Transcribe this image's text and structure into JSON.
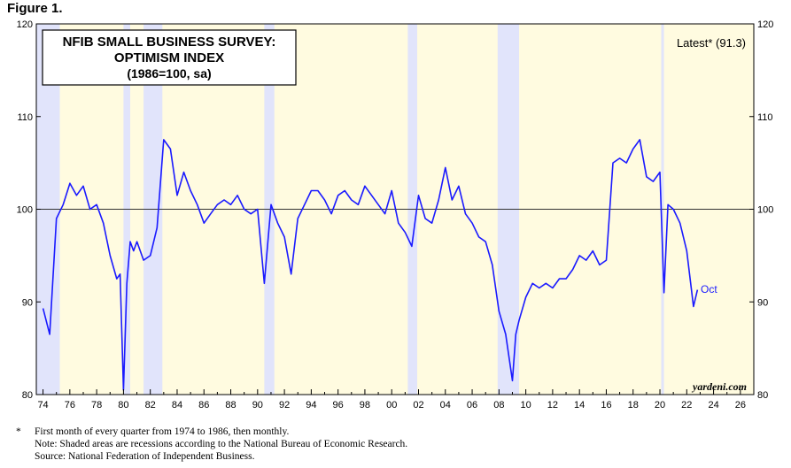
{
  "figure_label": "Figure 1.",
  "chart_data": {
    "type": "line",
    "title_lines": [
      "NFIB SMALL BUSINESS SURVEY:",
      "OPTIMISM INDEX",
      "(1986=100, sa)"
    ],
    "latest_label": "Latest* (91.3)",
    "end_label": "Oct",
    "watermark": "yardeni.com",
    "xlim": [
      1973.5,
      2027
    ],
    "ylim": [
      80,
      120
    ],
    "y_ticks": [
      80,
      90,
      100,
      110,
      120
    ],
    "x_ticks": [
      {
        "year": 1974,
        "label": "74"
      },
      {
        "year": 1976,
        "label": "76"
      },
      {
        "year": 1978,
        "label": "78"
      },
      {
        "year": 1980,
        "label": "80"
      },
      {
        "year": 1982,
        "label": "82"
      },
      {
        "year": 1984,
        "label": "84"
      },
      {
        "year": 1986,
        "label": "86"
      },
      {
        "year": 1988,
        "label": "88"
      },
      {
        "year": 1990,
        "label": "90"
      },
      {
        "year": 1992,
        "label": "92"
      },
      {
        "year": 1994,
        "label": "94"
      },
      {
        "year": 1996,
        "label": "96"
      },
      {
        "year": 1998,
        "label": "98"
      },
      {
        "year": 2000,
        "label": "00"
      },
      {
        "year": 2002,
        "label": "02"
      },
      {
        "year": 2004,
        "label": "04"
      },
      {
        "year": 2006,
        "label": "06"
      },
      {
        "year": 2008,
        "label": "08"
      },
      {
        "year": 2010,
        "label": "10"
      },
      {
        "year": 2012,
        "label": "12"
      },
      {
        "year": 2014,
        "label": "14"
      },
      {
        "year": 2016,
        "label": "16"
      },
      {
        "year": 2018,
        "label": "18"
      },
      {
        "year": 2020,
        "label": "20"
      },
      {
        "year": 2022,
        "label": "22"
      },
      {
        "year": 2024,
        "label": "24"
      },
      {
        "year": 2026,
        "label": "26"
      }
    ],
    "recessions": [
      [
        1973.5,
        1975.25
      ],
      [
        1980.0,
        1980.5
      ],
      [
        1981.5,
        1982.9
      ],
      [
        1990.5,
        1991.25
      ],
      [
        2001.2,
        2001.9
      ],
      [
        2007.9,
        2009.5
      ],
      [
        2020.1,
        2020.3
      ]
    ],
    "reference_line": 100,
    "series": [
      {
        "color": "#1a1aff",
        "x": [
          1974.0,
          1974.5,
          1975.0,
          1975.5,
          1976.0,
          1976.5,
          1977.0,
          1977.5,
          1978.0,
          1978.5,
          1979.0,
          1979.5,
          1979.75,
          1980.0,
          1980.25,
          1980.5,
          1980.75,
          1981.0,
          1981.5,
          1982.0,
          1982.25,
          1982.5,
          1983.0,
          1983.5,
          1984.0,
          1984.5,
          1985.0,
          1985.5,
          1986.0,
          1986.5,
          1987.0,
          1987.5,
          1988.0,
          1988.5,
          1989.0,
          1989.5,
          1990.0,
          1990.5,
          1991.0,
          1991.5,
          1992.0,
          1992.5,
          1993.0,
          1993.5,
          1994.0,
          1994.5,
          1995.0,
          1995.5,
          1996.0,
          1996.5,
          1997.0,
          1997.5,
          1998.0,
          1998.5,
          1999.0,
          1999.5,
          2000.0,
          2000.5,
          2001.0,
          2001.5,
          2002.0,
          2002.5,
          2003.0,
          2003.5,
          2004.0,
          2004.5,
          2005.0,
          2005.5,
          2006.0,
          2006.5,
          2007.0,
          2007.5,
          2008.0,
          2008.5,
          2009.0,
          2009.25,
          2009.5,
          2010.0,
          2010.5,
          2011.0,
          2011.5,
          2012.0,
          2012.5,
          2013.0,
          2013.5,
          2014.0,
          2014.5,
          2015.0,
          2015.5,
          2016.0,
          2016.5,
          2017.0,
          2017.5,
          2018.0,
          2018.5,
          2019.0,
          2019.5,
          2020.0,
          2020.3,
          2020.6,
          2021.0,
          2021.5,
          2022.0,
          2022.5,
          2022.8
        ],
        "y": [
          89.3,
          86.5,
          99.0,
          100.5,
          102.8,
          101.5,
          102.5,
          100.0,
          100.5,
          98.5,
          95.0,
          92.5,
          93.0,
          80.5,
          92.0,
          96.5,
          95.5,
          96.5,
          94.5,
          95.0,
          96.5,
          98.0,
          107.5,
          106.5,
          101.5,
          104.0,
          102.0,
          100.5,
          98.5,
          99.5,
          100.5,
          101.0,
          100.5,
          101.5,
          100.0,
          99.5,
          100.0,
          92.0,
          100.5,
          98.5,
          97.0,
          93.0,
          99.0,
          100.5,
          102.0,
          102.0,
          101.0,
          99.5,
          101.5,
          102.0,
          101.0,
          100.5,
          102.5,
          101.5,
          100.5,
          99.5,
          102.0,
          98.5,
          97.5,
          96.0,
          101.5,
          99.0,
          98.5,
          101.0,
          104.5,
          101.0,
          102.5,
          99.5,
          98.5,
          97.0,
          96.5,
          94.0,
          89.0,
          86.5,
          81.5,
          86.5,
          88.0,
          90.5,
          92.0,
          91.5,
          92.0,
          91.5,
          92.5,
          92.5,
          93.5,
          95.0,
          94.5,
          95.5,
          94.0,
          94.5,
          105.0,
          105.5,
          105.0,
          106.5,
          107.5,
          103.5,
          103.0,
          104.0,
          91.0,
          100.5,
          100.0,
          98.5,
          95.5,
          89.5,
          91.3
        ]
      }
    ]
  },
  "footnotes": {
    "star": "*",
    "line1": "First month of every quarter from 1974 to 1986, then monthly.",
    "line2": "Note: Shaded areas are recessions according to the National Bureau of Economic Research.",
    "line3": "Source: National Federation of Independent Business."
  }
}
